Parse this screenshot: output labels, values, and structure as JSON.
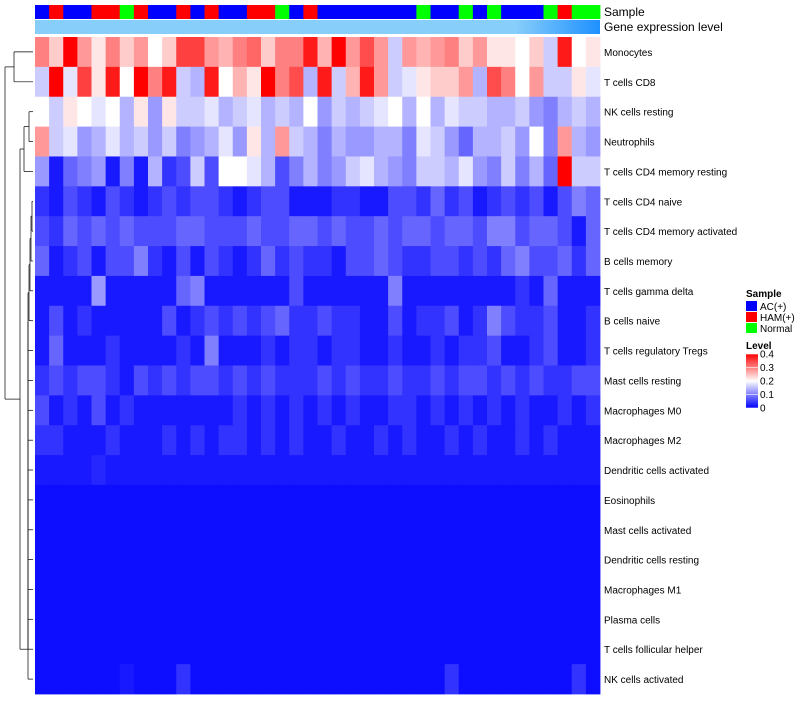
{
  "chart_data": {
    "type": "heatmap",
    "annotation_titles": {
      "sample": "Sample",
      "expression": "Gene expression level"
    },
    "sample_groups": [
      "AC(+)",
      "HAM(+)",
      "AC(+)",
      "AC(+)",
      "HAM(+)",
      "HAM(+)",
      "Normal",
      "HAM(+)",
      "AC(+)",
      "AC(+)",
      "HAM(+)",
      "AC(+)",
      "HAM(+)",
      "AC(+)",
      "AC(+)",
      "HAM(+)",
      "HAM(+)",
      "Normal",
      "AC(+)",
      "HAM(+)",
      "AC(+)",
      "AC(+)",
      "AC(+)",
      "AC(+)",
      "AC(+)",
      "AC(+)",
      "AC(+)",
      "Normal",
      "AC(+)",
      "AC(+)",
      "Normal",
      "AC(+)",
      "Normal",
      "AC(+)",
      "AC(+)",
      "AC(+)",
      "Normal",
      "HAM(+)",
      "Normal",
      "Normal"
    ],
    "group_colors": {
      "AC(+)": "#0000ff",
      "HAM(+)": "#ff0000",
      "Normal": "#00ff00"
    },
    "expression_color": "#87cefa",
    "expression_gradient_end": "#1e90ff",
    "rows": [
      "Monocytes",
      "T cells CD8",
      "NK cells resting",
      "Neutrophils",
      "T cells CD4 memory resting",
      "T cells CD4 naive",
      "T cells CD4 memory activated",
      "B cells memory",
      "T cells gamma delta",
      "B cells naive",
      "T cells regulatory  Tregs",
      "Mast cells resting",
      "Macrophages M0",
      "Macrophages M2",
      "Dendritic cells activated",
      "Eosinophils",
      "Mast cells activated",
      "Dendritic cells resting",
      "Macrophages M1",
      "Plasma cells",
      "T cells follicular helper",
      "NK cells activated"
    ],
    "values": [
      [
        0.3,
        0.24,
        0.4,
        0.28,
        0.22,
        0.3,
        0.24,
        0.28,
        0.2,
        0.24,
        0.35,
        0.35,
        0.28,
        0.26,
        0.3,
        0.32,
        0.24,
        0.3,
        0.3,
        0.38,
        0.26,
        0.4,
        0.28,
        0.34,
        0.28,
        0.16,
        0.28,
        0.26,
        0.28,
        0.3,
        0.24,
        0.28,
        0.22,
        0.22,
        0.2,
        0.24,
        0.16,
        0.38,
        0.2,
        0.22
      ],
      [
        0.16,
        0.4,
        0.18,
        0.35,
        0.22,
        0.38,
        0.2,
        0.4,
        0.3,
        0.38,
        0.16,
        0.14,
        0.38,
        0.2,
        0.26,
        0.22,
        0.4,
        0.3,
        0.34,
        0.14,
        0.38,
        0.16,
        0.26,
        0.38,
        0.28,
        0.16,
        0.18,
        0.22,
        0.24,
        0.24,
        0.28,
        0.14,
        0.34,
        0.3,
        0.2,
        0.28,
        0.16,
        0.16,
        0.22,
        0.18
      ],
      [
        0.2,
        0.16,
        0.22,
        0.2,
        0.18,
        0.2,
        0.14,
        0.22,
        0.12,
        0.22,
        0.16,
        0.16,
        0.18,
        0.14,
        0.16,
        0.18,
        0.14,
        0.16,
        0.14,
        0.2,
        0.12,
        0.16,
        0.14,
        0.16,
        0.18,
        0.2,
        0.14,
        0.2,
        0.14,
        0.18,
        0.16,
        0.16,
        0.14,
        0.14,
        0.16,
        0.12,
        0.1,
        0.14,
        0.16,
        0.14
      ],
      [
        0.28,
        0.16,
        0.18,
        0.12,
        0.14,
        0.18,
        0.14,
        0.16,
        0.12,
        0.16,
        0.1,
        0.12,
        0.14,
        0.18,
        0.12,
        0.22,
        0.14,
        0.28,
        0.16,
        0.14,
        0.1,
        0.14,
        0.12,
        0.12,
        0.14,
        0.14,
        0.1,
        0.18,
        0.16,
        0.12,
        0.08,
        0.14,
        0.14,
        0.16,
        0.12,
        0.2,
        0.1,
        0.28,
        0.14,
        0.12
      ],
      [
        0.12,
        0.02,
        0.08,
        0.1,
        0.12,
        0.02,
        0.1,
        0.02,
        0.14,
        0.04,
        0.06,
        0.16,
        0.06,
        0.2,
        0.2,
        0.18,
        0.14,
        0.06,
        0.1,
        0.14,
        0.1,
        0.12,
        0.16,
        0.18,
        0.14,
        0.12,
        0.1,
        0.16,
        0.16,
        0.14,
        0.18,
        0.12,
        0.1,
        0.16,
        0.1,
        0.14,
        0.08,
        0.4,
        0.16,
        0.16
      ],
      [
        0.04,
        0.02,
        0.06,
        0.04,
        0.02,
        0.06,
        0.04,
        0.02,
        0.04,
        0.06,
        0.04,
        0.06,
        0.06,
        0.04,
        0.02,
        0.04,
        0.06,
        0.06,
        0.02,
        0.02,
        0.02,
        0.04,
        0.04,
        0.02,
        0.02,
        0.06,
        0.06,
        0.04,
        0.08,
        0.04,
        0.06,
        0.02,
        0.04,
        0.06,
        0.04,
        0.06,
        0.02,
        0.06,
        0.1,
        0.08
      ],
      [
        0.06,
        0.04,
        0.08,
        0.06,
        0.08,
        0.06,
        0.08,
        0.06,
        0.06,
        0.06,
        0.08,
        0.08,
        0.06,
        0.06,
        0.06,
        0.08,
        0.06,
        0.06,
        0.08,
        0.08,
        0.06,
        0.08,
        0.06,
        0.06,
        0.08,
        0.06,
        0.08,
        0.08,
        0.06,
        0.08,
        0.08,
        0.06,
        0.1,
        0.1,
        0.06,
        0.08,
        0.08,
        0.06,
        0.02,
        0.08
      ],
      [
        0.08,
        0.02,
        0.04,
        0.06,
        0.02,
        0.06,
        0.06,
        0.1,
        0.04,
        0.02,
        0.06,
        0.02,
        0.06,
        0.04,
        0.02,
        0.04,
        0.08,
        0.04,
        0.06,
        0.04,
        0.04,
        0.02,
        0.06,
        0.06,
        0.08,
        0.06,
        0.04,
        0.04,
        0.06,
        0.06,
        0.04,
        0.06,
        0.04,
        0.08,
        0.1,
        0.06,
        0.06,
        0.08,
        0.04,
        0.08
      ],
      [
        0.02,
        0.02,
        0.02,
        0.02,
        0.12,
        0.02,
        0.02,
        0.02,
        0.02,
        0.02,
        0.08,
        0.1,
        0.02,
        0.02,
        0.02,
        0.02,
        0.02,
        0.02,
        0.06,
        0.02,
        0.02,
        0.02,
        0.02,
        0.02,
        0.02,
        0.1,
        0.02,
        0.02,
        0.02,
        0.02,
        0.02,
        0.02,
        0.02,
        0.02,
        0.04,
        0.02,
        0.08,
        0.02,
        0.02,
        0.02
      ],
      [
        0.02,
        0.06,
        0.02,
        0.04,
        0.02,
        0.02,
        0.02,
        0.02,
        0.02,
        0.06,
        0.02,
        0.04,
        0.06,
        0.04,
        0.06,
        0.04,
        0.06,
        0.08,
        0.04,
        0.04,
        0.06,
        0.04,
        0.04,
        0.02,
        0.02,
        0.06,
        0.02,
        0.04,
        0.04,
        0.06,
        0.02,
        0.04,
        0.1,
        0.06,
        0.04,
        0.04,
        0.06,
        0.02,
        0.02,
        0.04
      ],
      [
        0.02,
        0.08,
        0.02,
        0.02,
        0.02,
        0.04,
        0.02,
        0.02,
        0.02,
        0.02,
        0.04,
        0.02,
        0.1,
        0.02,
        0.02,
        0.02,
        0.04,
        0.02,
        0.04,
        0.04,
        0.02,
        0.04,
        0.04,
        0.02,
        0.02,
        0.04,
        0.02,
        0.02,
        0.04,
        0.02,
        0.04,
        0.04,
        0.06,
        0.02,
        0.02,
        0.04,
        0.06,
        0.02,
        0.02,
        0.04
      ],
      [
        0.04,
        0.06,
        0.04,
        0.06,
        0.06,
        0.04,
        0.02,
        0.06,
        0.04,
        0.06,
        0.04,
        0.06,
        0.06,
        0.04,
        0.06,
        0.04,
        0.06,
        0.04,
        0.04,
        0.04,
        0.06,
        0.04,
        0.06,
        0.04,
        0.04,
        0.06,
        0.04,
        0.04,
        0.06,
        0.04,
        0.06,
        0.06,
        0.04,
        0.06,
        0.04,
        0.06,
        0.04,
        0.04,
        0.06,
        0.06
      ],
      [
        0.06,
        0.02,
        0.04,
        0.02,
        0.06,
        0.02,
        0.04,
        0.02,
        0.02,
        0.02,
        0.02,
        0.02,
        0.02,
        0.02,
        0.04,
        0.02,
        0.04,
        0.02,
        0.04,
        0.02,
        0.04,
        0.02,
        0.04,
        0.02,
        0.02,
        0.04,
        0.04,
        0.02,
        0.04,
        0.02,
        0.04,
        0.02,
        0.04,
        0.02,
        0.04,
        0.02,
        0.02,
        0.04,
        0.02,
        0.04
      ],
      [
        0.04,
        0.04,
        0.02,
        0.02,
        0.02,
        0.04,
        0.02,
        0.02,
        0.02,
        0.04,
        0.02,
        0.04,
        0.02,
        0.04,
        0.04,
        0.02,
        0.04,
        0.02,
        0.04,
        0.02,
        0.02,
        0.04,
        0.02,
        0.02,
        0.04,
        0.02,
        0.04,
        0.02,
        0.02,
        0.04,
        0.02,
        0.04,
        0.02,
        0.02,
        0.04,
        0.02,
        0.04,
        0.02,
        0.02,
        0.02
      ],
      [
        0.02,
        0.02,
        0.02,
        0.02,
        0.03,
        0.02,
        0.02,
        0.02,
        0.02,
        0.02,
        0.02,
        0.02,
        0.02,
        0.02,
        0.02,
        0.02,
        0.02,
        0.02,
        0.02,
        0.02,
        0.02,
        0.02,
        0.02,
        0.02,
        0.02,
        0.02,
        0.02,
        0.02,
        0.02,
        0.02,
        0.02,
        0.02,
        0.02,
        0.02,
        0.02,
        0.02,
        0.02,
        0.02,
        0.02,
        0.02
      ],
      [
        0.01,
        0.01,
        0.01,
        0.01,
        0.01,
        0.01,
        0.01,
        0.01,
        0.01,
        0.01,
        0.01,
        0.01,
        0.01,
        0.01,
        0.01,
        0.01,
        0.01,
        0.01,
        0.01,
        0.01,
        0.01,
        0.01,
        0.01,
        0.01,
        0.01,
        0.01,
        0.01,
        0.01,
        0.01,
        0.01,
        0.01,
        0.01,
        0.01,
        0.01,
        0.01,
        0.01,
        0.01,
        0.01,
        0.01,
        0.01
      ],
      [
        0.01,
        0.01,
        0.01,
        0.01,
        0.01,
        0.01,
        0.01,
        0.01,
        0.01,
        0.01,
        0.01,
        0.01,
        0.01,
        0.01,
        0.01,
        0.01,
        0.01,
        0.01,
        0.01,
        0.01,
        0.01,
        0.01,
        0.01,
        0.01,
        0.01,
        0.01,
        0.01,
        0.01,
        0.01,
        0.01,
        0.01,
        0.01,
        0.01,
        0.01,
        0.01,
        0.01,
        0.01,
        0.01,
        0.01,
        0.01
      ],
      [
        0.01,
        0.01,
        0.01,
        0.01,
        0.01,
        0.01,
        0.01,
        0.01,
        0.01,
        0.01,
        0.01,
        0.01,
        0.01,
        0.01,
        0.01,
        0.01,
        0.01,
        0.01,
        0.01,
        0.01,
        0.01,
        0.01,
        0.01,
        0.01,
        0.01,
        0.01,
        0.01,
        0.01,
        0.01,
        0.01,
        0.01,
        0.01,
        0.01,
        0.01,
        0.01,
        0.01,
        0.01,
        0.01,
        0.01,
        0.01
      ],
      [
        0.01,
        0.01,
        0.01,
        0.01,
        0.01,
        0.01,
        0.01,
        0.01,
        0.01,
        0.01,
        0.01,
        0.01,
        0.01,
        0.01,
        0.01,
        0.01,
        0.01,
        0.01,
        0.01,
        0.01,
        0.01,
        0.01,
        0.01,
        0.01,
        0.01,
        0.01,
        0.01,
        0.01,
        0.01,
        0.01,
        0.01,
        0.01,
        0.01,
        0.01,
        0.01,
        0.01,
        0.01,
        0.01,
        0.01,
        0.01
      ],
      [
        0.01,
        0.01,
        0.01,
        0.01,
        0.01,
        0.01,
        0.01,
        0.01,
        0.01,
        0.01,
        0.01,
        0.01,
        0.01,
        0.01,
        0.01,
        0.01,
        0.01,
        0.01,
        0.01,
        0.01,
        0.01,
        0.01,
        0.01,
        0.01,
        0.01,
        0.01,
        0.01,
        0.01,
        0.01,
        0.01,
        0.01,
        0.01,
        0.01,
        0.01,
        0.01,
        0.01,
        0.01,
        0.01,
        0.01,
        0.01
      ],
      [
        0.01,
        0.01,
        0.01,
        0.01,
        0.01,
        0.01,
        0.01,
        0.01,
        0.01,
        0.01,
        0.01,
        0.01,
        0.01,
        0.01,
        0.01,
        0.01,
        0.01,
        0.01,
        0.01,
        0.01,
        0.01,
        0.01,
        0.01,
        0.01,
        0.01,
        0.01,
        0.01,
        0.01,
        0.01,
        0.01,
        0.01,
        0.01,
        0.01,
        0.01,
        0.01,
        0.01,
        0.01,
        0.01,
        0.01,
        0.01
      ],
      [
        0.01,
        0.01,
        0.01,
        0.01,
        0.01,
        0.01,
        0.02,
        0.01,
        0.01,
        0.01,
        0.04,
        0.01,
        0.01,
        0.01,
        0.01,
        0.01,
        0.01,
        0.01,
        0.01,
        0.01,
        0.01,
        0.01,
        0.01,
        0.01,
        0.01,
        0.01,
        0.01,
        0.01,
        0.01,
        0.04,
        0.01,
        0.01,
        0.01,
        0.01,
        0.01,
        0.01,
        0.01,
        0.01,
        0.04,
        0.01
      ]
    ],
    "color_scale": {
      "min": 0,
      "max": 0.4,
      "colors": [
        "#0000ff",
        "#ffffff",
        "#ff0000"
      ]
    },
    "legend": {
      "sample_title": "Sample",
      "sample_entries": [
        "AC(+)",
        "HAM(+)",
        "Normal"
      ],
      "level_title": "Level",
      "level_ticks": [
        "0.4",
        "0.3",
        "0.2",
        "0.1",
        "0"
      ],
      "level_tick_values": [
        0.4,
        0.3,
        0.2,
        0.1,
        0
      ]
    }
  }
}
